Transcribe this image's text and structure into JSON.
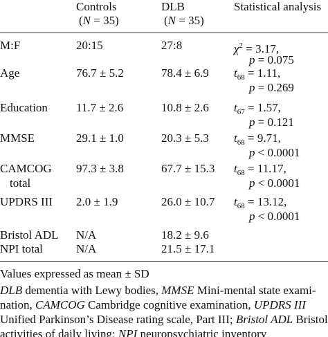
{
  "table": {
    "header": {
      "columns": [
        {
          "name": "Controls",
          "n": [
            {
              "text": "("
            },
            {
              "text": "N",
              "style": "italic"
            },
            {
              "text": " = 35)"
            }
          ]
        },
        {
          "name": "DLB",
          "n": [
            {
              "text": "("
            },
            {
              "text": "N",
              "style": "italic"
            },
            {
              "text": " = 35)"
            }
          ]
        },
        {
          "name": "Statistical analysis"
        }
      ]
    },
    "rows": [
      {
        "label": [
          "M:F"
        ],
        "controls": "20:15",
        "dlb": "27:8",
        "stat": [
          [
            {
              "text": "χ",
              "style": "italic"
            },
            {
              "text": "2",
              "style": "sup"
            },
            {
              "text": " = 3.17,"
            }
          ],
          [
            {
              "text": "p",
              "style": "italic"
            },
            {
              "text": " = 0.075"
            }
          ]
        ]
      },
      {
        "label": [
          "Age"
        ],
        "controls": "76.7 ± 5.2",
        "dlb": "78.4 ± 6.9",
        "stat": [
          [
            {
              "text": "t",
              "style": "italic"
            },
            {
              "text": "68",
              "style": "sub"
            },
            {
              "text": " = 1.11,"
            }
          ],
          [
            {
              "text": "p",
              "style": "italic"
            },
            {
              "text": " = 0.269"
            }
          ]
        ]
      },
      {
        "label": [
          "Education"
        ],
        "controls": "11.7 ± 2.6",
        "dlb": "10.8 ± 2.6",
        "stat": [
          [
            {
              "text": "t",
              "style": "italic"
            },
            {
              "text": "67",
              "style": "sub"
            },
            {
              "text": " = 1.57,"
            }
          ],
          [
            {
              "text": "p",
              "style": "italic"
            },
            {
              "text": " = 0.121"
            }
          ]
        ]
      },
      {
        "label": [
          "MMSE"
        ],
        "controls": "29.1 ± 1.0",
        "dlb": "20.3 ± 5.3",
        "stat": [
          [
            {
              "text": "t",
              "style": "italic"
            },
            {
              "text": "68",
              "style": "sub"
            },
            {
              "text": " = 9.71,"
            }
          ],
          [
            {
              "text": "p",
              "style": "italic"
            },
            {
              "text": " < 0.0001"
            }
          ]
        ]
      },
      {
        "label": [
          "CAMCOG",
          "total"
        ],
        "controls": "97.3 ± 3.8",
        "dlb": "67.7 ± 15.3",
        "stat": [
          [
            {
              "text": "t",
              "style": "italic"
            },
            {
              "text": "68",
              "style": "sub"
            },
            {
              "text": " = 11.17,"
            }
          ],
          [
            {
              "text": "p",
              "style": "italic"
            },
            {
              "text": " < 0.0001"
            }
          ]
        ]
      },
      {
        "label": [
          "UPDRS III"
        ],
        "controls": "2.0 ± 1.9",
        "dlb": "26.0 ± 10.7",
        "stat": [
          [
            {
              "text": "t",
              "style": "italic"
            },
            {
              "text": "68",
              "style": "sub"
            },
            {
              "text": " = 13.12,"
            }
          ],
          [
            {
              "text": "p",
              "style": "italic"
            },
            {
              "text": " < 0.0001"
            }
          ]
        ]
      },
      {
        "label": [
          "Bristol ADL"
        ],
        "controls": "N/A",
        "dlb": "18.2 ± 9.6",
        "stat": []
      },
      {
        "label": [
          "NPI total"
        ],
        "controls": "N/A",
        "dlb": "21.5 ± 17.1",
        "stat": []
      }
    ]
  },
  "notes": {
    "summary": "Values expressed as mean ± SD",
    "abbreviations": [
      [
        {
          "text": "DLB",
          "style": "italic"
        },
        {
          "text": " dementia with Lewy bodies, "
        },
        {
          "text": "MMSE",
          "style": "italic"
        },
        {
          "text": " Mini-mental state exami-"
        }
      ],
      [
        {
          "text": "nation, "
        },
        {
          "text": "CAMCOG",
          "style": "italic"
        },
        {
          "text": " Cambridge cognitive examination, "
        },
        {
          "text": "UPDRS III",
          "style": "italic"
        }
      ],
      [
        {
          "text": "Unified Parkinson’s Disease rating scale, Part III; "
        },
        {
          "text": "Bristol ADL",
          "style": "italic"
        },
        {
          "text": " Bristol"
        }
      ],
      [
        {
          "text": "activities of daily living; "
        },
        {
          "text": "NPI",
          "style": "italic"
        },
        {
          "text": " neuropsychiatric inventory"
        }
      ]
    ]
  }
}
